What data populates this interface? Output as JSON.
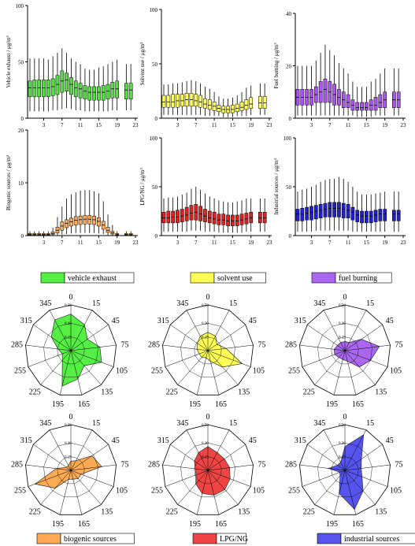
{
  "chart_data": [
    {
      "type": "boxplot",
      "panel": "box-vehicle",
      "ylabel": "Vehicle exhaust / μg/m³",
      "ylim": [
        0,
        100
      ],
      "yticks": [
        0,
        50,
        100
      ],
      "xticks": [
        3,
        7,
        11,
        15,
        19,
        23
      ],
      "color": "#55dd44",
      "hours": [
        0,
        1,
        2,
        3,
        4,
        5,
        6,
        7,
        8,
        9,
        10,
        11,
        12,
        13,
        14,
        15,
        16,
        17,
        18,
        19,
        21,
        22
      ],
      "q1": [
        19,
        19,
        19,
        19,
        19,
        20,
        21,
        23,
        24,
        21,
        19,
        18,
        17,
        16,
        16,
        16,
        16,
        17,
        18,
        18,
        17,
        17
      ],
      "median": [
        27,
        27,
        27,
        27,
        27,
        28,
        30,
        33,
        34,
        30,
        27,
        26,
        24,
        23,
        23,
        23,
        23,
        24,
        26,
        26,
        25,
        25
      ],
      "q3": [
        33,
        34,
        34,
        34,
        34,
        35,
        38,
        42,
        40,
        36,
        33,
        31,
        29,
        28,
        28,
        28,
        29,
        30,
        32,
        33,
        31,
        31
      ],
      "whisker_low": [
        6,
        6,
        6,
        6,
        6,
        7,
        7,
        8,
        9,
        8,
        7,
        7,
        6,
        6,
        6,
        6,
        6,
        6,
        7,
        7,
        7,
        7
      ],
      "whisker_high": [
        53,
        53,
        53,
        53,
        52,
        55,
        58,
        62,
        58,
        53,
        50,
        48,
        44,
        43,
        43,
        45,
        46,
        48,
        50,
        52,
        48,
        48
      ]
    },
    {
      "type": "boxplot",
      "panel": "box-solvent",
      "ylabel": "Solvent use / μg/m³",
      "ylim": [
        0,
        100
      ],
      "yticks": [
        0,
        50,
        100
      ],
      "xticks": [
        3,
        7,
        11,
        15,
        19,
        23
      ],
      "color": "#ffff55",
      "hours": [
        0,
        1,
        2,
        3,
        4,
        5,
        6,
        7,
        8,
        9,
        10,
        11,
        12,
        13,
        14,
        15,
        16,
        17,
        18,
        19,
        21,
        22
      ],
      "q1": [
        10,
        10,
        10,
        10,
        11,
        11,
        11,
        11,
        10,
        9,
        8,
        7,
        6,
        5,
        5,
        5,
        6,
        7,
        8,
        9,
        9,
        9
      ],
      "median": [
        15,
        15,
        15,
        16,
        16,
        17,
        17,
        16,
        15,
        13,
        12,
        11,
        9,
        8,
        8,
        8,
        9,
        10,
        12,
        13,
        14,
        14
      ],
      "q3": [
        21,
        21,
        22,
        22,
        22,
        23,
        23,
        22,
        21,
        18,
        17,
        15,
        12,
        11,
        11,
        12,
        13,
        15,
        17,
        19,
        20,
        20
      ],
      "whisker_low": [
        3,
        3,
        3,
        3,
        3,
        3,
        3,
        3,
        3,
        2,
        2,
        2,
        2,
        1,
        1,
        1,
        2,
        2,
        2,
        3,
        3,
        3
      ],
      "whisker_high": [
        31,
        31,
        32,
        32,
        33,
        34,
        35,
        34,
        32,
        29,
        27,
        24,
        20,
        18,
        18,
        19,
        21,
        24,
        28,
        30,
        32,
        32
      ]
    },
    {
      "type": "boxplot",
      "panel": "box-fuel",
      "ylabel": "Fuel burning / μg/m³",
      "ylim": [
        0,
        40
      ],
      "yticks": [
        0,
        20,
        40
      ],
      "xticks": [
        3,
        7,
        11,
        15,
        19,
        23
      ],
      "color": "#aa55ee",
      "hours": [
        0,
        1,
        2,
        3,
        4,
        5,
        6,
        7,
        8,
        9,
        10,
        11,
        12,
        13,
        14,
        15,
        16,
        17,
        18,
        19,
        21,
        22
      ],
      "q1": [
        5,
        5,
        5,
        5,
        6,
        6,
        6,
        6,
        5,
        5,
        4,
        4,
        3,
        3,
        3,
        3,
        3,
        3,
        4,
        4,
        4,
        4
      ],
      "median": [
        8,
        8,
        8,
        8,
        9,
        10,
        11,
        10,
        9,
        8,
        7,
        6,
        5,
        4,
        4,
        4,
        5,
        5,
        6,
        7,
        7,
        7
      ],
      "q3": [
        11,
        11,
        11,
        11,
        12,
        14,
        15,
        14,
        13,
        11,
        10,
        9,
        7,
        6,
        6,
        6,
        7,
        8,
        9,
        10,
        10,
        10
      ],
      "whisker_low": [
        1,
        1,
        1,
        1,
        1,
        1,
        1,
        1,
        1,
        1,
        1,
        1,
        1,
        0.5,
        0.5,
        0.5,
        0.5,
        1,
        1,
        1,
        1,
        1
      ],
      "whisker_high": [
        20,
        20,
        20,
        20,
        22,
        25,
        28,
        26,
        24,
        21,
        19,
        17,
        14,
        12,
        12,
        12,
        14,
        15,
        17,
        19,
        19,
        19
      ]
    },
    {
      "type": "boxplot",
      "panel": "box-biogenic",
      "ylabel": "Biogenic sources / μg/m³",
      "ylim": [
        0,
        20
      ],
      "yticks": [
        0,
        10,
        20
      ],
      "xticks": [
        3,
        7,
        11,
        15,
        19,
        23
      ],
      "color": "#ffaa55",
      "hours": [
        0,
        1,
        2,
        3,
        4,
        5,
        6,
        7,
        8,
        9,
        10,
        11,
        12,
        13,
        14,
        15,
        16,
        17,
        18,
        19,
        21,
        22
      ],
      "q1": [
        0.1,
        0.1,
        0.1,
        0.1,
        0.1,
        0.2,
        0.5,
        1.0,
        1.5,
        1.8,
        2.0,
        2.1,
        2.2,
        2.2,
        2.1,
        1.8,
        1.2,
        0.6,
        0.3,
        0.1,
        0.1,
        0.1
      ],
      "median": [
        0.2,
        0.2,
        0.2,
        0.2,
        0.2,
        0.4,
        1.0,
        1.8,
        2.3,
        2.6,
        2.9,
        3.0,
        3.1,
        3.1,
        3.0,
        2.7,
        2.0,
        1.0,
        0.5,
        0.2,
        0.2,
        0.2
      ],
      "q3": [
        0.4,
        0.4,
        0.4,
        0.4,
        0.4,
        0.7,
        1.6,
        2.6,
        3.0,
        3.3,
        3.6,
        3.7,
        3.8,
        3.8,
        3.7,
        3.4,
        2.7,
        1.6,
        0.8,
        0.4,
        0.4,
        0.4
      ],
      "whisker_low": [
        0,
        0,
        0,
        0,
        0,
        0,
        0.1,
        0.2,
        0.3,
        0.4,
        0.5,
        0.5,
        0.5,
        0.5,
        0.5,
        0.4,
        0.3,
        0.1,
        0,
        0,
        0,
        0
      ],
      "whisker_high": [
        0.8,
        0.8,
        0.8,
        0.8,
        0.8,
        1.5,
        3.5,
        5.5,
        7.0,
        7.8,
        8.2,
        8.5,
        8.6,
        8.6,
        8.4,
        8.0,
        6.5,
        4.0,
        2.0,
        0.8,
        0.8,
        0.8
      ]
    },
    {
      "type": "boxplot",
      "panel": "box-lpg",
      "ylabel": "LPG/NG / μg/m³",
      "ylim": [
        0,
        100
      ],
      "yticks": [
        0,
        50,
        100
      ],
      "xticks": [
        3,
        7,
        11,
        15,
        19,
        23
      ],
      "color": "#dd2222",
      "hours": [
        0,
        1,
        2,
        3,
        4,
        5,
        6,
        7,
        8,
        9,
        10,
        11,
        12,
        13,
        14,
        15,
        16,
        17,
        18,
        19,
        21,
        22
      ],
      "q1": [
        13,
        13,
        13,
        13,
        14,
        15,
        16,
        16,
        15,
        14,
        13,
        12,
        11,
        11,
        10,
        10,
        10,
        11,
        12,
        13,
        13,
        13
      ],
      "median": [
        18,
        18,
        19,
        19,
        20,
        21,
        23,
        24,
        22,
        20,
        18,
        17,
        16,
        16,
        15,
        15,
        15,
        16,
        17,
        18,
        18,
        18
      ],
      "q3": [
        24,
        25,
        25,
        26,
        27,
        29,
        31,
        32,
        30,
        27,
        25,
        24,
        22,
        22,
        21,
        21,
        21,
        22,
        23,
        24,
        24,
        24
      ],
      "whisker_low": [
        4,
        4,
        4,
        4,
        4,
        4,
        5,
        5,
        5,
        4,
        4,
        4,
        3,
        3,
        3,
        3,
        3,
        3,
        4,
        4,
        4,
        4
      ],
      "whisker_high": [
        38,
        39,
        39,
        40,
        42,
        44,
        48,
        50,
        47,
        43,
        40,
        38,
        36,
        35,
        34,
        34,
        35,
        36,
        38,
        38,
        38,
        38
      ]
    },
    {
      "type": "boxplot",
      "panel": "box-industrial",
      "ylabel": "Industrial sources / μg/m³",
      "ylim": [
        0,
        100
      ],
      "yticks": [
        0,
        50,
        100
      ],
      "xticks": [
        3,
        7,
        11,
        15,
        19,
        23
      ],
      "color": "#2222cc",
      "hours": [
        0,
        1,
        2,
        3,
        4,
        5,
        6,
        7,
        8,
        9,
        10,
        11,
        12,
        13,
        14,
        15,
        16,
        17,
        18,
        19,
        21,
        22
      ],
      "q1": [
        15,
        15,
        16,
        16,
        17,
        18,
        19,
        19,
        19,
        19,
        18,
        18,
        16,
        14,
        13,
        13,
        13,
        14,
        15,
        15,
        15,
        15
      ],
      "median": [
        22,
        22,
        23,
        24,
        25,
        26,
        27,
        28,
        28,
        28,
        27,
        26,
        24,
        21,
        20,
        20,
        20,
        21,
        22,
        22,
        22,
        22
      ],
      "q3": [
        27,
        28,
        29,
        30,
        31,
        32,
        33,
        34,
        34,
        34,
        33,
        32,
        29,
        26,
        25,
        25,
        25,
        26,
        27,
        27,
        26,
        26
      ],
      "whisker_low": [
        4,
        4,
        4,
        4,
        5,
        5,
        5,
        5,
        5,
        5,
        5,
        5,
        4,
        4,
        4,
        4,
        4,
        4,
        4,
        4,
        4,
        4
      ],
      "whisker_high": [
        45,
        47,
        48,
        50,
        52,
        55,
        57,
        58,
        58,
        60,
        58,
        55,
        50,
        45,
        42,
        42,
        42,
        43,
        44,
        45,
        45,
        45
      ]
    },
    {
      "type": "radar",
      "panel": "radar-vehicle",
      "legend": "vehicle exhaust",
      "color": "#55ee44",
      "rmax": 0.5,
      "rticks": [
        0.15,
        0.3
      ],
      "directions": [
        "0",
        "15",
        "45",
        "75",
        "105",
        "135",
        "165",
        "195",
        "225",
        "255",
        "285",
        "315",
        "345"
      ],
      "values": [
        0.4,
        0.32,
        0.22,
        0.32,
        0.36,
        0.22,
        0.32,
        0.4,
        0.14,
        0.1,
        0.14,
        0.26,
        0.38
      ]
    },
    {
      "type": "radar",
      "panel": "radar-solvent",
      "legend": "solvent use",
      "color": "#ffff55",
      "rmax": 0.5,
      "rticks": [
        0.15,
        0.3
      ],
      "directions": [
        "0",
        "15",
        "45",
        "75",
        "105",
        "135",
        "165",
        "195",
        "225",
        "255",
        "285",
        "315",
        "345"
      ],
      "values": [
        0.2,
        0.18,
        0.12,
        0.2,
        0.4,
        0.24,
        0.12,
        0.08,
        0.1,
        0.1,
        0.12,
        0.14,
        0.18
      ]
    },
    {
      "type": "radar",
      "panel": "radar-fuel",
      "legend": "fuel burning",
      "color": "#aa66ee",
      "rmax": 0.5,
      "rticks": [
        0.15,
        0.3
      ],
      "directions": [
        "0",
        "15",
        "45",
        "75",
        "105",
        "135",
        "165",
        "195",
        "225",
        "255",
        "285",
        "315",
        "345"
      ],
      "values": [
        0.1,
        0.1,
        0.22,
        0.38,
        0.3,
        0.24,
        0.12,
        0.1,
        0.1,
        0.12,
        0.12,
        0.1,
        0.1
      ]
    },
    {
      "type": "radar",
      "panel": "radar-biogenic",
      "legend": "biogenic sources",
      "color": "#ffaa55",
      "rmax": 0.5,
      "rticks": [
        0.15,
        0.3
      ],
      "directions": [
        "0",
        "15",
        "45",
        "75",
        "105",
        "135",
        "165",
        "195",
        "225",
        "255",
        "285",
        "315",
        "345"
      ],
      "values": [
        0.1,
        0.12,
        0.28,
        0.34,
        0.12,
        0.12,
        0.1,
        0.1,
        0.26,
        0.42,
        0.16,
        0.06,
        0.06
      ]
    },
    {
      "type": "radar",
      "panel": "radar-lpg",
      "legend": "LPG/NG",
      "color": "#ee4444",
      "rmax": 0.5,
      "rticks": [
        0.15,
        0.3
      ],
      "directions": [
        "0",
        "15",
        "45",
        "75",
        "105",
        "135",
        "165",
        "195",
        "225",
        "255",
        "285",
        "315",
        "345"
      ],
      "values": [
        0.26,
        0.22,
        0.22,
        0.24,
        0.26,
        0.28,
        0.28,
        0.26,
        0.2,
        0.14,
        0.14,
        0.18,
        0.22
      ]
    },
    {
      "type": "radar",
      "panel": "radar-industrial",
      "legend": "industrial sources",
      "color": "#5555ee",
      "rmax": 0.5,
      "rticks": [
        0.15,
        0.3
      ],
      "directions": [
        "0",
        "15",
        "45",
        "75",
        "105",
        "135",
        "165",
        "195",
        "225",
        "255",
        "285",
        "315",
        "345"
      ],
      "values": [
        0.26,
        0.44,
        0.22,
        0.18,
        0.2,
        0.3,
        0.44,
        0.26,
        0.08,
        0.06,
        0.18,
        0.1,
        0.1
      ]
    }
  ]
}
